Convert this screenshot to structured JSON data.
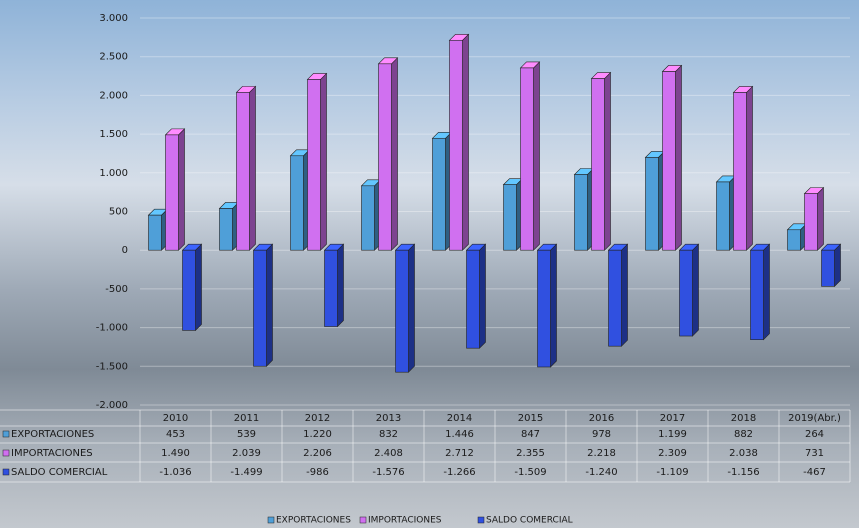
{
  "chart_data": {
    "type": "bar3d",
    "categories": [
      "2010",
      "2011",
      "2012",
      "2013",
      "2014",
      "2015",
      "2016",
      "2017",
      "2018",
      "2019(Abr.)"
    ],
    "series": [
      {
        "name": "EXPORTACIONES",
        "color": "#4f9fd8",
        "values": [
          453,
          539,
          1220,
          832,
          1446,
          847,
          978,
          1199,
          882,
          264
        ],
        "value_labels": [
          "453",
          "539",
          "1.220",
          "832",
          "1.446",
          "847",
          "978",
          "1.199",
          "882",
          "264"
        ]
      },
      {
        "name": "IMPORTACIONES",
        "color": "#d070f0",
        "values": [
          1490,
          2039,
          2206,
          2408,
          2712,
          2355,
          2218,
          2309,
          2038,
          731
        ],
        "value_labels": [
          "1.490",
          "2.039",
          "2.206",
          "2.408",
          "2.712",
          "2.355",
          "2.218",
          "2.309",
          "2.038",
          "731"
        ]
      },
      {
        "name": "SALDO COMERCIAL",
        "color": "#3050e0",
        "values": [
          -1036,
          -1499,
          -986,
          -1576,
          -1266,
          -1509,
          -1240,
          -1109,
          -1156,
          -467
        ],
        "value_labels": [
          "-1.036",
          "-1.499",
          "-986",
          "-1.576",
          "-1.266",
          "-1.509",
          "-1.240",
          "-1.109",
          "-1.156",
          "-467"
        ]
      }
    ],
    "ylim": [
      -2000,
      3000
    ],
    "yticks": [
      {
        "value": -2000,
        "label": "-2.000"
      },
      {
        "value": -1500,
        "label": "-1.500"
      },
      {
        "value": -1000,
        "label": "-1.000"
      },
      -500,
      0,
      500,
      {
        "value": 1000,
        "label": "1.000"
      },
      {
        "value": 1500,
        "label": "1.500"
      },
      {
        "value": 2000,
        "label": "2.000"
      },
      {
        "value": 2500,
        "label": "2.500"
      },
      {
        "value": 3000,
        "label": "3.000"
      }
    ],
    "grid": true
  }
}
